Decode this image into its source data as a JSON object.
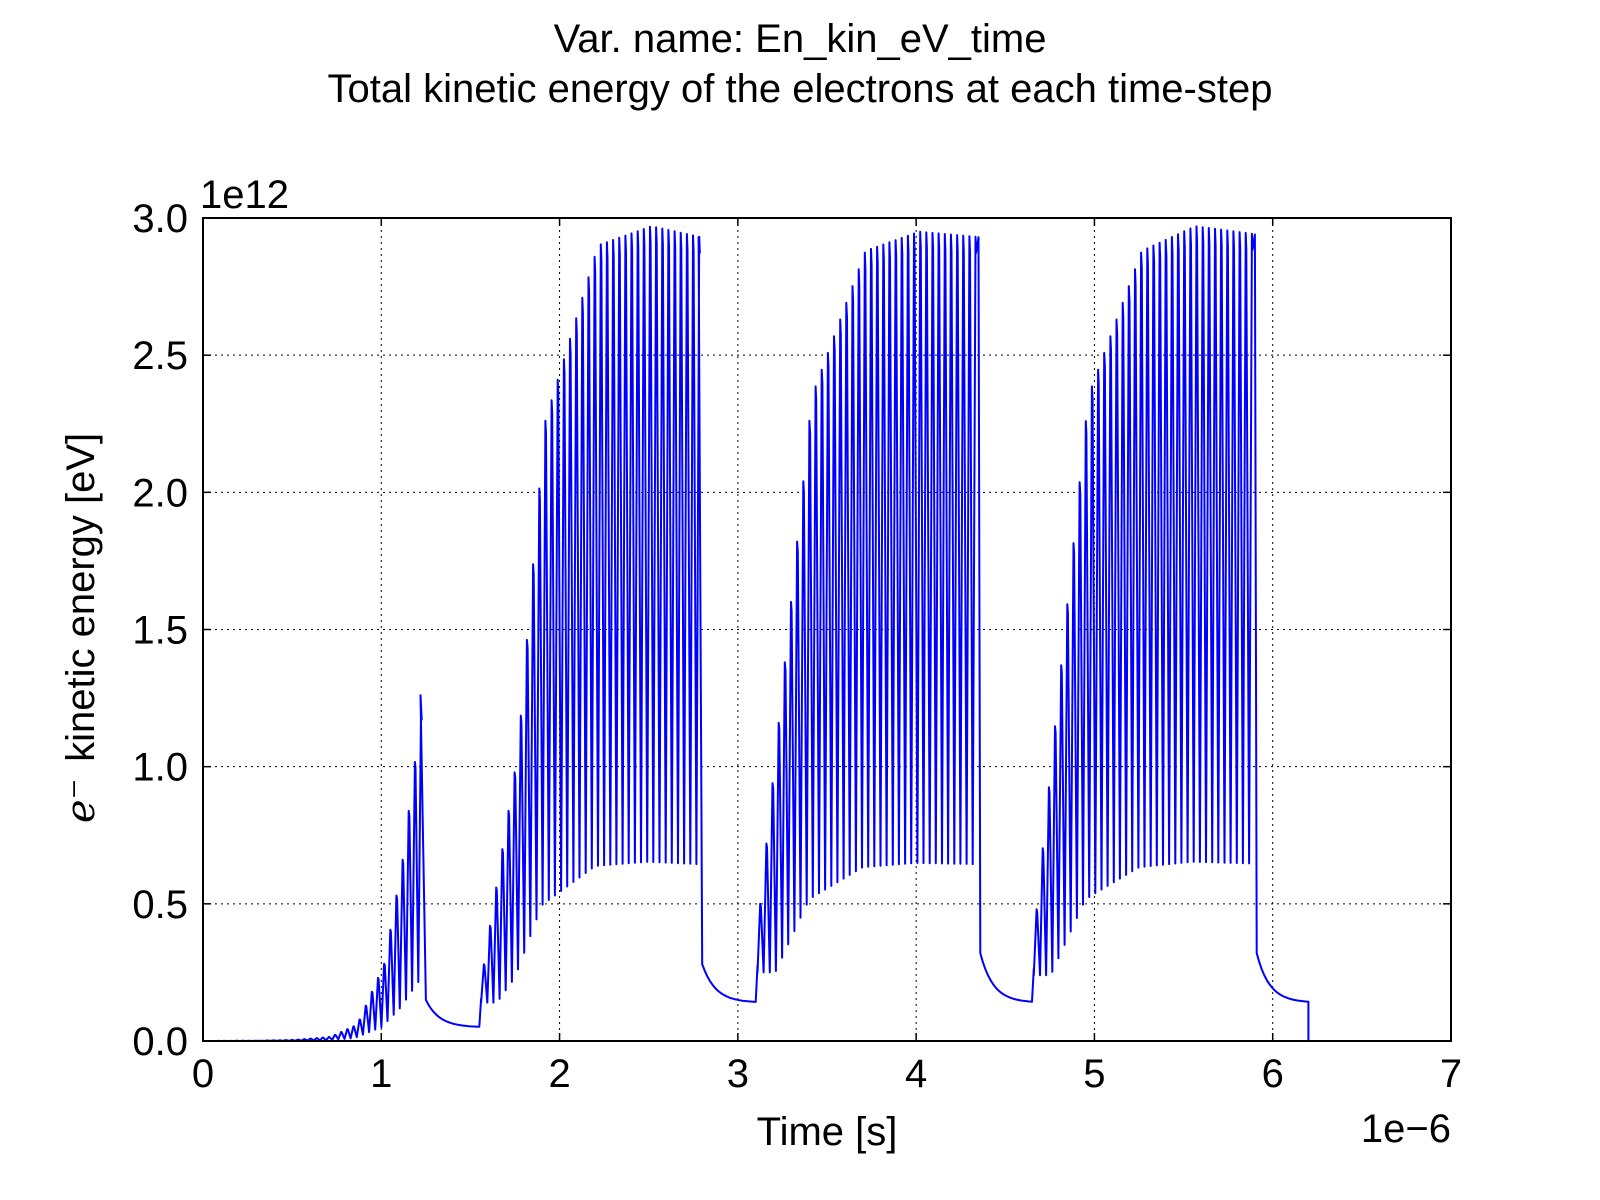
{
  "chart_data": {
    "type": "line",
    "title": "Var. name: En_kin_eV_time",
    "subtitle": "Total kinetic energy of the electrons at each time-step",
    "xlabel": "Time [s]",
    "ylabel_symbol": "e⁻",
    "ylabel": "kinetic energy [eV]",
    "x_multiplier": "1e−6",
    "y_multiplier": "1e12",
    "xlim": [
      0,
      7
    ],
    "ylim": [
      0.0,
      3.0
    ],
    "xticks": [
      "0",
      "1",
      "2",
      "3",
      "4",
      "5",
      "6",
      "7"
    ],
    "yticks": [
      "0.0",
      "0.5",
      "1.0",
      "1.5",
      "2.0",
      "2.5",
      "3.0"
    ],
    "grid": true,
    "line_color": "#0000ff",
    "series": [
      {
        "x_units": "1e-6 s",
        "y_units": "1e12 eV",
        "samples": [
          {
            "x": 0.0,
            "y": 0.0
          },
          {
            "x": 0.3,
            "y": 0.001
          },
          {
            "x": 0.5,
            "y": 0.004
          },
          {
            "x": 0.7,
            "y": 0.015
          },
          {
            "x": 0.85,
            "y": 0.06
          },
          {
            "x": 1.0,
            "y": 0.28
          },
          {
            "x": 1.1,
            "y": 0.64
          },
          {
            "x": 1.22,
            "y": 1.26
          },
          {
            "x": 1.25,
            "y": 0.15
          },
          {
            "x": 1.55,
            "y": 0.05
          },
          {
            "x": 1.56,
            "y": 0.28
          },
          {
            "x": 1.75,
            "y": 1.05
          },
          {
            "x": 1.9,
            "y": 2.25
          },
          {
            "x": 2.2,
            "y": 2.9
          },
          {
            "x": 2.5,
            "y": 2.97
          },
          {
            "x": 2.78,
            "y": 2.93
          },
          {
            "x": 2.8,
            "y": 0.28
          },
          {
            "x": 3.1,
            "y": 0.14
          },
          {
            "x": 3.11,
            "y": 0.5
          },
          {
            "x": 3.4,
            "y": 2.35
          },
          {
            "x": 3.7,
            "y": 2.88
          },
          {
            "x": 4.0,
            "y": 2.95
          },
          {
            "x": 4.35,
            "y": 2.93
          },
          {
            "x": 4.36,
            "y": 0.32
          },
          {
            "x": 4.65,
            "y": 0.14
          },
          {
            "x": 4.66,
            "y": 0.48
          },
          {
            "x": 4.95,
            "y": 2.35
          },
          {
            "x": 5.25,
            "y": 2.88
          },
          {
            "x": 5.55,
            "y": 2.97
          },
          {
            "x": 5.9,
            "y": 2.94
          },
          {
            "x": 5.91,
            "y": 0.32
          },
          {
            "x": 6.2,
            "y": 0.14
          },
          {
            "x": 6.2,
            "y": 0.0
          }
        ]
      }
    ]
  }
}
